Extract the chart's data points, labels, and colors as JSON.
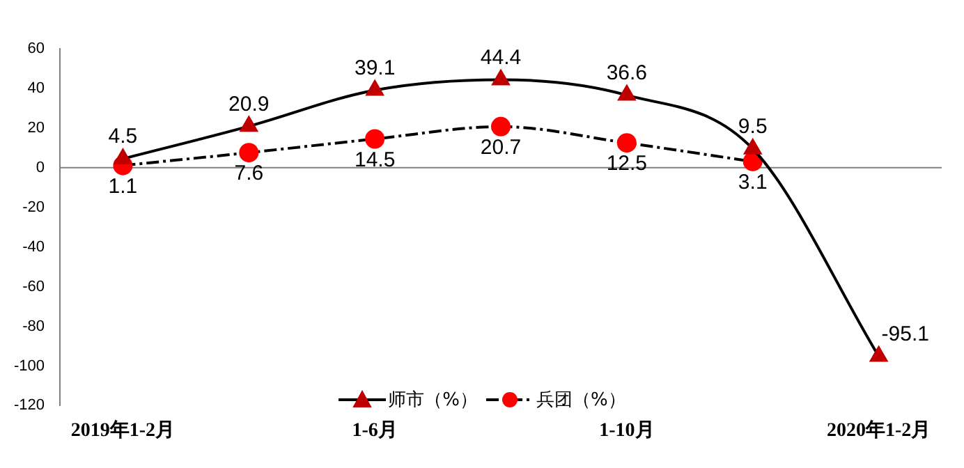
{
  "chart_data": {
    "type": "line",
    "categories": [
      "2019年1-2月",
      null,
      "1-6月",
      null,
      "1-10月",
      null,
      "2020年1-2月"
    ],
    "series": [
      {
        "name": "师市（%）",
        "color": "#c00000",
        "marker": "triangle",
        "line_style": "solid",
        "values": [
          4.5,
          20.9,
          39.1,
          44.4,
          36.6,
          9.5,
          -95.1
        ]
      },
      {
        "name": "兵团（%）",
        "color": "#ff0000",
        "marker": "circle",
        "line_style": "dashed",
        "values": [
          1.1,
          7.6,
          14.5,
          20.7,
          12.5,
          3.1,
          null
        ]
      }
    ],
    "ylim": [
      -120,
      60
    ],
    "yticks": [
      -120,
      -100,
      -80,
      -60,
      -40,
      -20,
      0,
      20,
      40,
      60
    ],
    "grid": false,
    "ref_lines": [
      {
        "axis": "y",
        "value": 0,
        "color": "#808080"
      }
    ],
    "legend": "bottom",
    "data_labels": true
  }
}
